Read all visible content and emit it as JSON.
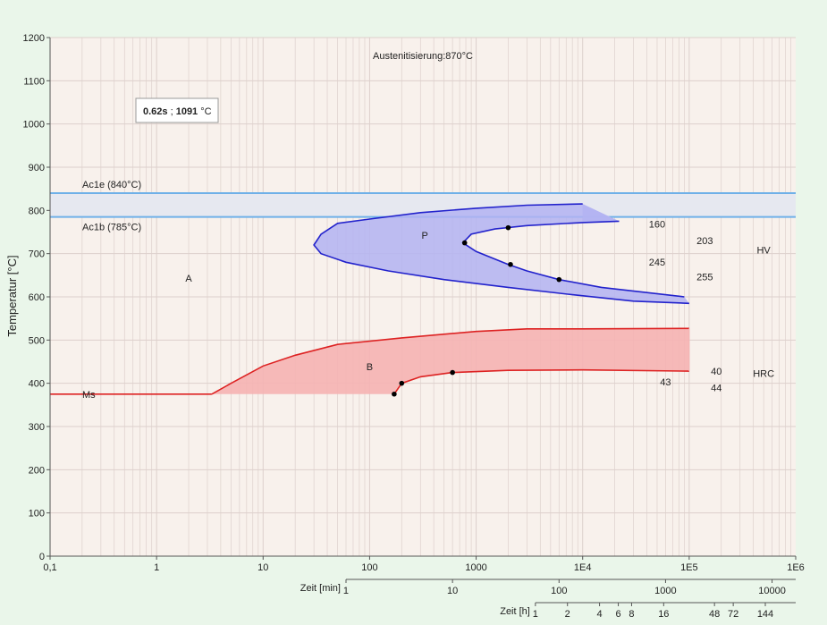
{
  "chart_data": {
    "type": "line",
    "title": "Austenitisierung:870°C",
    "ylabel": "Temperatur [°C]",
    "xlabel_seconds": "",
    "xlim": [
      0.1,
      1000000
    ],
    "ylim": [
      0,
      1200
    ],
    "log_x": true,
    "grid": true,
    "yticks": [
      "0",
      "100",
      "200",
      "300",
      "400",
      "500",
      "600",
      "700",
      "800",
      "900",
      "1000",
      "1100",
      "1200"
    ],
    "xticks": [
      {
        "v": 0.1,
        "label": "0,1"
      },
      {
        "v": 1,
        "label": "1"
      },
      {
        "v": 10,
        "label": "10"
      },
      {
        "v": 100,
        "label": "100"
      },
      {
        "v": 1000,
        "label": "1000"
      },
      {
        "v": 10000,
        "label": "1E4"
      },
      {
        "v": 100000,
        "label": "1E5"
      },
      {
        "v": 1000000,
        "label": "1E6"
      }
    ],
    "minutes_axis": {
      "label": "Zeit [min]",
      "ticks": [
        {
          "v": 1,
          "label": "1"
        },
        {
          "v": 10,
          "label": "10"
        },
        {
          "v": 100,
          "label": "100"
        },
        {
          "v": 1000,
          "label": "1000"
        },
        {
          "v": 10000,
          "label": "10000"
        }
      ]
    },
    "hours_axis": {
      "label": "Zeit [h]",
      "ticks": [
        {
          "v": 1,
          "label": "1"
        },
        {
          "v": 2,
          "label": "2"
        },
        {
          "v": 4,
          "label": "4"
        },
        {
          "v": 6,
          "label": "6"
        },
        {
          "v": 8,
          "label": "8"
        },
        {
          "v": 16,
          "label": "16"
        },
        {
          "v": 48,
          "label": "48"
        },
        {
          "v": 72,
          "label": "72"
        },
        {
          "v": 144,
          "label": "144"
        }
      ]
    },
    "readout": {
      "time": "0.62s",
      "sep": " ; ",
      "temp": "1091",
      "unit": " °C"
    },
    "ac_lines": [
      {
        "name": "Ac1e (840°C)",
        "temp": 840
      },
      {
        "name": "Ac1b (785°C)",
        "temp": 785
      }
    ],
    "ms": {
      "label": "Ms",
      "temp": 375
    },
    "regions": [
      {
        "label": "A",
        "x": 2,
        "y": 635
      },
      {
        "label": "P",
        "x": 330,
        "y": 735
      },
      {
        "label": "B",
        "x": 100,
        "y": 430
      }
    ],
    "pearlite_start": [
      [
        10000,
        815
      ],
      [
        3000,
        812
      ],
      [
        1000,
        805
      ],
      [
        300,
        795
      ],
      [
        100,
        780
      ],
      [
        50,
        770
      ],
      [
        35,
        745
      ],
      [
        30,
        720
      ],
      [
        35,
        700
      ],
      [
        60,
        680
      ],
      [
        150,
        660
      ],
      [
        500,
        640
      ],
      [
        2000,
        622
      ],
      [
        8000,
        605
      ],
      [
        30000,
        590
      ],
      [
        100000,
        585
      ]
    ],
    "pearlite_finish": [
      [
        22000,
        775
      ],
      [
        10000,
        772
      ],
      [
        3000,
        765
      ],
      [
        1500,
        757
      ],
      [
        900,
        745
      ],
      [
        750,
        725
      ],
      [
        1000,
        705
      ],
      [
        2000,
        675
      ],
      [
        3000,
        660
      ],
      [
        6000,
        640
      ],
      [
        15000,
        622
      ],
      [
        40000,
        610
      ],
      [
        90000,
        600
      ]
    ],
    "pearlite_top_edge": [
      [
        10000,
        815
      ],
      [
        22000,
        775
      ]
    ],
    "bainite_start": [
      [
        3.3,
        375
      ],
      [
        5,
        400
      ],
      [
        10,
        440
      ],
      [
        20,
        465
      ],
      [
        50,
        490
      ],
      [
        200,
        505
      ],
      [
        1000,
        520
      ],
      [
        3000,
        526
      ],
      [
        10000,
        526
      ],
      [
        100000,
        527
      ]
    ],
    "bainite_finish": [
      [
        170,
        375
      ],
      [
        200,
        400
      ],
      [
        300,
        415
      ],
      [
        600,
        425
      ],
      [
        2000,
        430
      ],
      [
        10000,
        431
      ],
      [
        100000,
        428
      ]
    ],
    "ms_line": [
      [
        0.1,
        375
      ],
      [
        3.3,
        375
      ]
    ],
    "points": [
      {
        "x": 2000,
        "y": 760
      },
      {
        "x": 780,
        "y": 725
      },
      {
        "x": 2100,
        "y": 675
      },
      {
        "x": 6000,
        "y": 640
      },
      {
        "x": 170,
        "y": 375
      },
      {
        "x": 200,
        "y": 400
      },
      {
        "x": 600,
        "y": 425
      }
    ],
    "hv": {
      "unit": "HV",
      "values": [
        {
          "label": "160",
          "x": 50000,
          "y": 760
        },
        {
          "label": "203",
          "x": 140000,
          "y": 722
        },
        {
          "label": "245",
          "x": 50000,
          "y": 672
        },
        {
          "label": "255",
          "x": 140000,
          "y": 638
        }
      ],
      "unit_pos": {
        "x": 500000,
        "y": 700
      }
    },
    "hrc": {
      "unit": "HRC",
      "values": [
        {
          "label": "40",
          "x": 180000,
          "y": 420
        },
        {
          "label": "43",
          "x": 60000,
          "y": 395
        },
        {
          "label": "44",
          "x": 180000,
          "y": 382
        }
      ],
      "unit_pos": {
        "x": 500000,
        "y": 415
      }
    },
    "colors": {
      "pearlite_line": "#2222cc",
      "pearlite_fill": "#b3b3f2",
      "bainite_line": "#dd2222",
      "bainite_fill": "#f5b3b3",
      "ac_line": "#6fb0e8",
      "ac_band": "#e6e8f0",
      "plot_bg": "#f8f1ec",
      "grid": "#ddd0cc"
    }
  }
}
